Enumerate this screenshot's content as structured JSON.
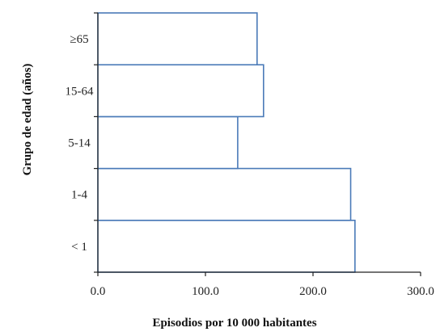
{
  "chart_data": {
    "type": "bar",
    "orientation": "horizontal",
    "categories": [
      "< 1",
      "1-4",
      "5-14",
      "15-64",
      "≥65"
    ],
    "values": [
      239,
      235,
      130,
      154,
      148
    ],
    "xlabel": "Episodios por 10 000 habitantes",
    "ylabel": "Grupo de edad (años)",
    "xlim": [
      0,
      300
    ],
    "xticks": [
      "0.0",
      "100.0",
      "200.0",
      "300.0"
    ],
    "grid": false,
    "legend": "none",
    "colors": {
      "bar_fill": "#ffffff",
      "bar_stroke": "#4a7ab8",
      "axis": "#222222"
    }
  }
}
